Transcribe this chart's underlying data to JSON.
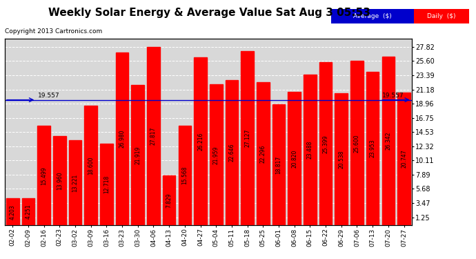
{
  "title": "Weekly Solar Energy & Average Value Sat Aug 3 05:53",
  "copyright": "Copyright 2013 Cartronics.com",
  "categories": [
    "02-02",
    "02-09",
    "02-16",
    "02-23",
    "03-02",
    "03-09",
    "03-16",
    "03-23",
    "03-30",
    "04-06",
    "04-13",
    "04-20",
    "04-27",
    "05-04",
    "05-11",
    "05-18",
    "05-25",
    "06-01",
    "06-08",
    "06-15",
    "06-22",
    "06-29",
    "07-06",
    "07-13",
    "07-20",
    "07-27"
  ],
  "values": [
    4.203,
    4.251,
    15.499,
    13.96,
    13.221,
    18.6,
    12.718,
    26.98,
    21.919,
    27.817,
    7.829,
    15.568,
    26.216,
    21.959,
    22.646,
    27.127,
    22.296,
    18.817,
    20.82,
    23.488,
    25.399,
    20.538,
    25.6,
    23.953,
    26.342,
    20.747
  ],
  "average_value": 19.557,
  "bar_color": "#ff0000",
  "average_line_color": "#0000cc",
  "plot_bg_color": "#d8d8d8",
  "yticks_right": [
    1.25,
    3.47,
    5.68,
    7.89,
    10.11,
    12.32,
    14.53,
    16.75,
    18.96,
    21.18,
    23.39,
    25.6,
    27.82
  ],
  "ylim": [
    0,
    29.07
  ],
  "bar_value_fontsize": 5.5,
  "xtick_fontsize": 6.5,
  "ytick_fontsize": 7.0,
  "title_fontsize": 11,
  "copyright_fontsize": 6.5
}
